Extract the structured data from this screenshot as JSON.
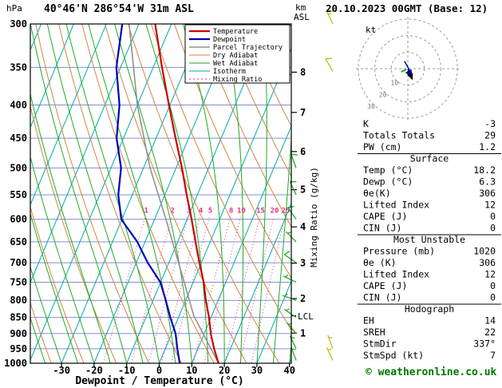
{
  "header": {
    "pressure_unit": "hPa",
    "station_title": "40°46'N 286°54'W 31m ASL",
    "valid_datetime": "20.10.2023 00GMT (Base: 12)",
    "altitude_unit_line1": "km",
    "altitude_unit_line2": "ASL"
  },
  "legend": {
    "items": [
      {
        "label": "Temperature",
        "color": "#cc0000",
        "width": 2.2,
        "dash": null
      },
      {
        "label": "Dewpoint",
        "color": "#0000bb",
        "width": 2.2,
        "dash": null
      },
      {
        "label": "Parcel Trajectory",
        "color": "#909090",
        "width": 1.6,
        "dash": null
      },
      {
        "label": "Dry Adiabat",
        "color": "#cc8844",
        "width": 1,
        "dash": null
      },
      {
        "label": "Wet Adiabat",
        "color": "#22aa22",
        "width": 1,
        "dash": null
      },
      {
        "label": "Isotherm",
        "color": "#00aaaa",
        "width": 1,
        "dash": null
      },
      {
        "label": "Mixing Ratio",
        "color": "#dd3388",
        "width": 1,
        "dash": "2 3"
      }
    ]
  },
  "axes": {
    "pressure_ticks": [
      300,
      350,
      400,
      450,
      500,
      550,
      600,
      650,
      700,
      750,
      800,
      850,
      900,
      950,
      1000
    ],
    "temperature_ticks": [
      -30,
      -20,
      -10,
      0,
      10,
      20,
      30,
      40
    ],
    "km_ticks": [
      1,
      2,
      3,
      4,
      5,
      6,
      7,
      8
    ],
    "x_axis_label": "Dewpoint / Temperature (°C)",
    "right_axis_label": "Mixing Ratio (g/kg)",
    "lcl_label": "LCL"
  },
  "chart_data": {
    "type": "skewt_log_p",
    "pressure_range_hpa": [
      300,
      1000
    ],
    "isotherms_c": {
      "min": -80,
      "max": 40,
      "step": 10
    },
    "dry_adiabats_theta_k": {
      "min": 230,
      "max": 400,
      "step": 10
    },
    "wet_adiabats_c_at_1000": {
      "min": -35,
      "max": 40,
      "step": 5
    },
    "mixing_ratio_g_kg": [
      1,
      2,
      3,
      4,
      5,
      8,
      10,
      15,
      20,
      25
    ],
    "temperature_profile_p_t": [
      [
        1000,
        18.2
      ],
      [
        950,
        15.0
      ],
      [
        900,
        12.0
      ],
      [
        850,
        9.4
      ],
      [
        800,
        6.2
      ],
      [
        750,
        3.2
      ],
      [
        700,
        -0.6
      ],
      [
        650,
        -4.5
      ],
      [
        600,
        -8.6
      ],
      [
        550,
        -13.3
      ],
      [
        500,
        -18.2
      ],
      [
        450,
        -24.0
      ],
      [
        400,
        -30.3
      ],
      [
        350,
        -37.3
      ],
      [
        300,
        -45.0
      ]
    ],
    "dewpoint_profile_p_t": [
      [
        1000,
        6.3
      ],
      [
        950,
        3.7
      ],
      [
        900,
        1.2
      ],
      [
        850,
        -2.5
      ],
      [
        800,
        -6.1
      ],
      [
        750,
        -10.1
      ],
      [
        700,
        -16.5
      ],
      [
        650,
        -22.4
      ],
      [
        600,
        -30.2
      ],
      [
        550,
        -34.3
      ],
      [
        500,
        -36.9
      ],
      [
        450,
        -42.1
      ],
      [
        400,
        -45.5
      ],
      [
        350,
        -51.3
      ],
      [
        300,
        -55.1
      ]
    ],
    "parcel_profile_p_t": [
      [
        1000,
        18.2
      ],
      [
        845,
        4.5
      ],
      [
        700,
        -7.0
      ],
      [
        600,
        -16.5
      ],
      [
        500,
        -28.0
      ],
      [
        400,
        -40.0
      ],
      [
        300,
        -53.0
      ]
    ],
    "lcl_pressure_hpa": 845,
    "wind_barbs": {
      "sounding": {
        "color": "#22aa22",
        "levels": [
          [
            500,
            340,
            10
          ],
          [
            550,
            335,
            10
          ],
          [
            600,
            325,
            10
          ],
          [
            650,
            315,
            5
          ],
          [
            700,
            305,
            10
          ],
          [
            750,
            295,
            5
          ],
          [
            800,
            290,
            5
          ],
          [
            850,
            305,
            5
          ],
          [
            900,
            320,
            5
          ],
          [
            950,
            335,
            5
          ],
          [
            990,
            340,
            5
          ]
        ]
      },
      "aux": {
        "color": "#bcbc22",
        "levels": [
          [
            300,
            335,
            15
          ],
          [
            355,
            330,
            10
          ],
          [
            950,
            340,
            5
          ],
          [
            990,
            335,
            5
          ]
        ]
      }
    }
  },
  "hodograph": {
    "unit_label": "kt",
    "rings_kt": [
      10,
      20,
      30
    ],
    "trace_uv_kt": [
      [
        -2,
        4.5
      ],
      [
        0.5,
        0
      ],
      [
        1,
        -2.5
      ],
      [
        2.5,
        -5
      ]
    ],
    "mean_wind_uv_kt": [
      [
        -4,
        -2
      ],
      [
        -1,
        -0.5
      ]
    ],
    "storm_motion_uv_kt": [
      2.7,
      -6.4
    ]
  },
  "table": {
    "top_rows": [
      [
        "K",
        "-3"
      ],
      [
        "Totals Totals",
        "29"
      ],
      [
        "PW (cm)",
        "1.2"
      ]
    ],
    "sections": [
      {
        "header": "Surface",
        "rows": [
          [
            "Temp (°C)",
            "18.2"
          ],
          [
            "Dewp (°C)",
            "6.3"
          ],
          [
            "θe(K)",
            "306"
          ],
          [
            "Lifted Index",
            "12"
          ],
          [
            "CAPE (J)",
            "0"
          ],
          [
            "CIN (J)",
            "0"
          ]
        ]
      },
      {
        "header": "Most Unstable",
        "rows": [
          [
            "Pressure (mb)",
            "1020"
          ],
          [
            "θe (K)",
            "306"
          ],
          [
            "Lifted Index",
            "12"
          ],
          [
            "CAPE (J)",
            "0"
          ],
          [
            "CIN (J)",
            "0"
          ]
        ]
      },
      {
        "header": "Hodograph",
        "rows": [
          [
            "EH",
            "14"
          ],
          [
            "SREH",
            "22"
          ],
          [
            "StmDir",
            "337°"
          ],
          [
            "StmSpd (kt)",
            "7"
          ]
        ]
      }
    ]
  },
  "footer": {
    "copyright": "© weatheronline.co.uk",
    "copyright_color": "#007700"
  }
}
